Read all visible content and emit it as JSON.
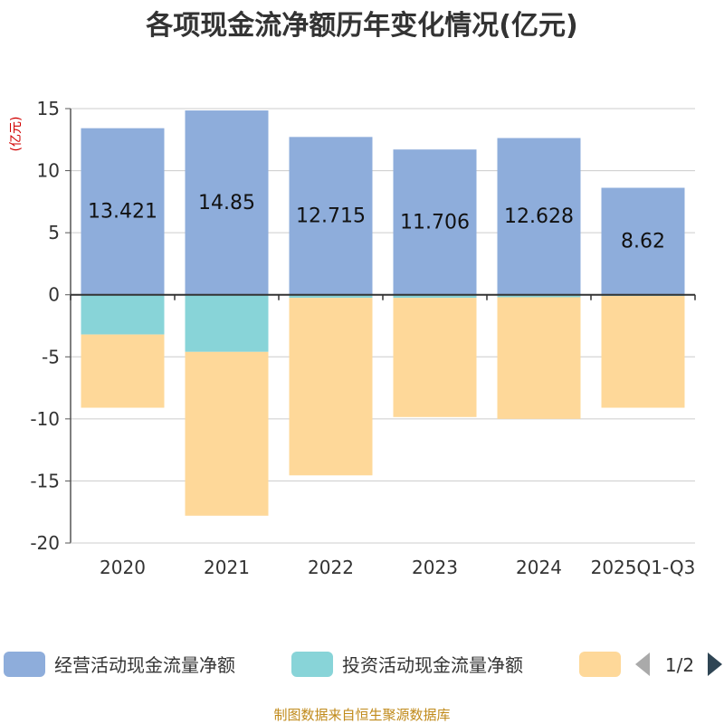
{
  "chart_data": {
    "type": "bar",
    "stacked": true,
    "title": "各项现金流净额历年变化情况(亿元)",
    "ylabel": "(亿元)",
    "xlabel": "",
    "categories": [
      "2020",
      "2021",
      "2022",
      "2023",
      "2024",
      "2025Q1-Q3"
    ],
    "ylim": [
      -20,
      15
    ],
    "yticks": [
      15,
      10,
      5,
      0,
      -5,
      -10,
      -15,
      -20
    ],
    "series": [
      {
        "name": "经营活动现金流量净额",
        "color": "#8eaddb",
        "values": [
          13.421,
          14.85,
          12.715,
          11.706,
          12.628,
          8.62
        ],
        "labels": [
          "13.421",
          "14.85",
          "12.715",
          "11.706",
          "12.628",
          "8.62"
        ]
      },
      {
        "name": "投资活动现金流量净额",
        "color": "#88d4d8",
        "values": [
          -3.2,
          -4.6,
          -0.25,
          -0.25,
          -0.2,
          -0.1
        ]
      },
      {
        "name": "",
        "color": "#fed899",
        "values": [
          -5.9,
          -13.2,
          -14.3,
          -9.6,
          -9.8,
          -9.0
        ]
      }
    ],
    "legend": {
      "page": "1/2"
    },
    "grid": true
  },
  "footer": "制图数据来自恒生聚源数据库"
}
